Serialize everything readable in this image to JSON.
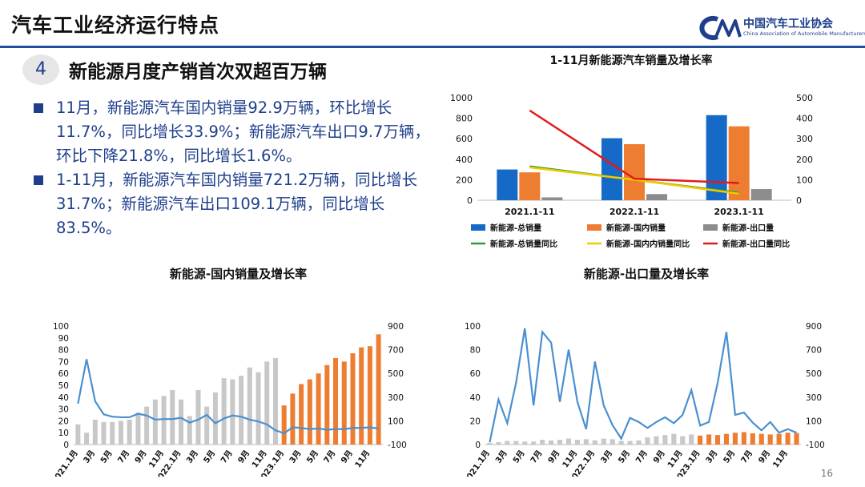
{
  "header": {
    "title": "汽车工业经济运行特点",
    "logo_cn": "中国汽车工业协会",
    "logo_en": "China Association of Automobile Manufacturers",
    "rule_color": "#1f4e9a"
  },
  "section": {
    "number": "4",
    "heading": "新能源月度产销首次双超百万辆"
  },
  "bullets": [
    "11月，新能源汽车国内销量92.9万辆，环比增长11.7%，同比增长33.9%；新能源汽车出口9.7万辆，环比下降21.8%，同比增长1.6%。",
    "1-11月，新能源汽车国内销量721.2万辆，同比增长31.7%；新能源汽车出口109.1万辆，同比增长83.5%。"
  ],
  "page_number": "16",
  "chart_data": [
    {
      "type": "bar",
      "title": "1-11月新能源汽车销量及增长率",
      "categories": [
        "2021.1-11",
        "2022.1-11",
        "2023.1-11"
      ],
      "ylim_left": [
        0,
        1000
      ],
      "yticks_left": [
        "1000",
        "800",
        "600",
        "400",
        "200",
        "0"
      ],
      "ylim_right": [
        0,
        500
      ],
      "yticks_right": [
        "500",
        "400",
        "300",
        "200",
        "100",
        "0"
      ],
      "series": [
        {
          "name": "新能源-总销量",
          "kind": "bar",
          "axis": "left",
          "color": "#1569c7",
          "values": [
            300,
            605,
            830
          ]
        },
        {
          "name": "新能源-国内销量",
          "kind": "bar",
          "axis": "left",
          "color": "#ed7d31",
          "values": [
            272,
            547,
            721
          ]
        },
        {
          "name": "新能源-出口量",
          "kind": "bar",
          "axis": "left",
          "color": "#8c8c8c",
          "values": [
            28,
            60,
            109
          ]
        },
        {
          "name": "新能源-总销量同比",
          "kind": "line",
          "axis": "right",
          "color": "#2ca02c",
          "values": [
            165,
            100,
            36
          ]
        },
        {
          "name": "新能源-国内内销量同比",
          "kind": "line",
          "axis": "right",
          "color": "#f2c900",
          "values": [
            160,
            100,
            32
          ]
        },
        {
          "name": "新能源-出口量同比",
          "kind": "line",
          "axis": "right",
          "color": "#e31a1c",
          "values": [
            438,
            105,
            84
          ]
        }
      ],
      "legend": "bottom"
    },
    {
      "type": "bar",
      "title": "新能源-国内销量及增长率",
      "ylim_left": [
        0,
        100
      ],
      "yticks_left": [
        "100",
        "90",
        "80",
        "70",
        "60",
        "50",
        "40",
        "30",
        "20",
        "10",
        "0"
      ],
      "ylim_right": [
        -100,
        900
      ],
      "yticks_right": [
        "900",
        "700",
        "500",
        "300",
        "100",
        "-100"
      ],
      "x_labels": [
        "2021.1月",
        "3月",
        "5月",
        "7月",
        "9月",
        "11月",
        "2022.1月",
        "3月",
        "5月",
        "7月",
        "9月",
        "11月",
        "2023.1月",
        "3月",
        "5月",
        "7月",
        "9月",
        "11月"
      ],
      "bar_colors": [
        "#c8c8c8",
        "#ed7d31"
      ],
      "line_color": "#4a90d0",
      "bars": [
        17,
        10,
        21,
        19,
        19,
        20,
        21,
        27,
        32,
        38,
        41,
        46,
        38,
        24,
        46,
        32,
        44,
        56,
        55,
        58,
        65,
        61,
        70,
        73,
        33,
        43,
        51,
        55,
        60,
        67,
        73,
        70,
        77,
        82,
        83,
        93
      ],
      "line": [
        245,
        620,
        265,
        155,
        135,
        130,
        130,
        160,
        145,
        110,
        115,
        115,
        125,
        85,
        110,
        150,
        80,
        120,
        145,
        135,
        110,
        95,
        70,
        20,
        -5,
        45,
        40,
        30,
        35,
        25,
        30,
        30,
        40,
        40,
        45,
        35
      ]
    },
    {
      "type": "bar",
      "title": "新能源-出口量及增长率",
      "ylim_left": [
        0,
        100
      ],
      "yticks_left": [
        "100",
        "80",
        "60",
        "40",
        "20",
        "0"
      ],
      "ylim_right": [
        -100,
        900
      ],
      "yticks_right": [
        "900",
        "700",
        "500",
        "300",
        "100",
        "-100"
      ],
      "x_labels": [
        "2021.1月",
        "3月",
        "5月",
        "7月",
        "9月",
        "11月",
        "2022.1月",
        "3月",
        "5月",
        "7月",
        "9月",
        "11月",
        "2023.1月",
        "3月",
        "5月",
        "7月",
        "9月",
        "11月"
      ],
      "bar_colors": [
        "#c8c8c8",
        "#ed7d31"
      ],
      "line_color": "#4a90d0",
      "bars": [
        1.5,
        2,
        3,
        3,
        2.5,
        2.5,
        4,
        3.5,
        4,
        5,
        4,
        4.5,
        3.5,
        5,
        4.5,
        3,
        3,
        3.5,
        6,
        7,
        8,
        9,
        7,
        8.5,
        7.5,
        8.5,
        8,
        9,
        10,
        10.5,
        9.5,
        9,
        8.5,
        9,
        10,
        9.7
      ],
      "line": [
        -80,
        280,
        80,
        420,
        880,
        230,
        850,
        760,
        260,
        700,
        260,
        30,
        600,
        230,
        65,
        -50,
        125,
        90,
        40,
        90,
        130,
        80,
        150,
        360,
        60,
        90,
        420,
        850,
        150,
        170,
        85,
        20,
        90,
        0,
        30,
        0
      ]
    }
  ]
}
